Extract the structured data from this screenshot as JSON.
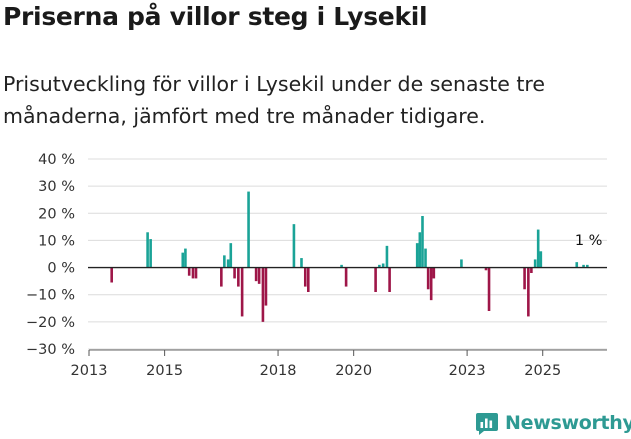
{
  "title": "Priserna på villor steg i Lysekil",
  "subtitle": "Prisutveckling för villor i Lysekil under de senaste tre månaderna, jämfört med tre månader tidigare.",
  "brand": {
    "name": "Newsworthy",
    "color": "#2e9a93"
  },
  "colors": {
    "positive": "#1aa397",
    "negative": "#9e1648",
    "grid": "#dcdcdc",
    "zero_line": "#222222"
  },
  "chart_data": {
    "type": "bar",
    "title": "Priserna på villor steg i Lysekil",
    "xlabel": "",
    "ylabel": "",
    "unit": "%",
    "xlim": [
      2013,
      2026.7
    ],
    "ylim": [
      -30,
      40
    ],
    "y_ticks": [
      40,
      30,
      20,
      10,
      0,
      -10,
      -20,
      -30
    ],
    "y_tick_labels": [
      "40 %",
      "30 %",
      "20 %",
      "10 %",
      "0 %",
      "−10 %",
      "−20 %",
      "−30 %"
    ],
    "x_ticks": [
      2013,
      2015,
      2018,
      2020,
      2023,
      2025
    ],
    "x_tick_labels": [
      "2013",
      "2015",
      "2018",
      "2020",
      "2023",
      "2025"
    ],
    "annotation": {
      "text": "1 %",
      "x": 2025.95,
      "y": 1
    },
    "x": [
      2013.6,
      2014.55,
      2014.63,
      2015.48,
      2015.55,
      2015.65,
      2015.75,
      2015.83,
      2016.5,
      2016.58,
      2016.68,
      2016.75,
      2016.85,
      2016.95,
      2017.05,
      2017.22,
      2017.42,
      2017.5,
      2017.6,
      2017.68,
      2018.42,
      2018.62,
      2018.72,
      2018.8,
      2019.68,
      2019.8,
      2020.58,
      2020.68,
      2020.78,
      2020.88,
      2020.95,
      2021.68,
      2021.75,
      2021.82,
      2021.9,
      2021.97,
      2022.05,
      2022.12,
      2022.85,
      2023.5,
      2023.58,
      2024.52,
      2024.62,
      2024.7,
      2024.8,
      2024.88,
      2024.95,
      2025.9,
      2026.08,
      2026.18
    ],
    "values": [
      -5.5,
      13,
      10.5,
      5.5,
      7,
      -3,
      -4,
      -4,
      -7,
      4.5,
      3,
      9,
      -4,
      -7,
      -18,
      28,
      -5,
      -6,
      -20,
      -14,
      16,
      3.5,
      -7,
      -9,
      1,
      -7,
      -9,
      1,
      1.5,
      8,
      -9,
      9,
      13,
      19,
      7,
      -8,
      -12,
      -4,
      3,
      -1,
      -16,
      -8,
      -18,
      -2,
      3,
      14,
      6,
      2,
      1,
      1
    ]
  }
}
